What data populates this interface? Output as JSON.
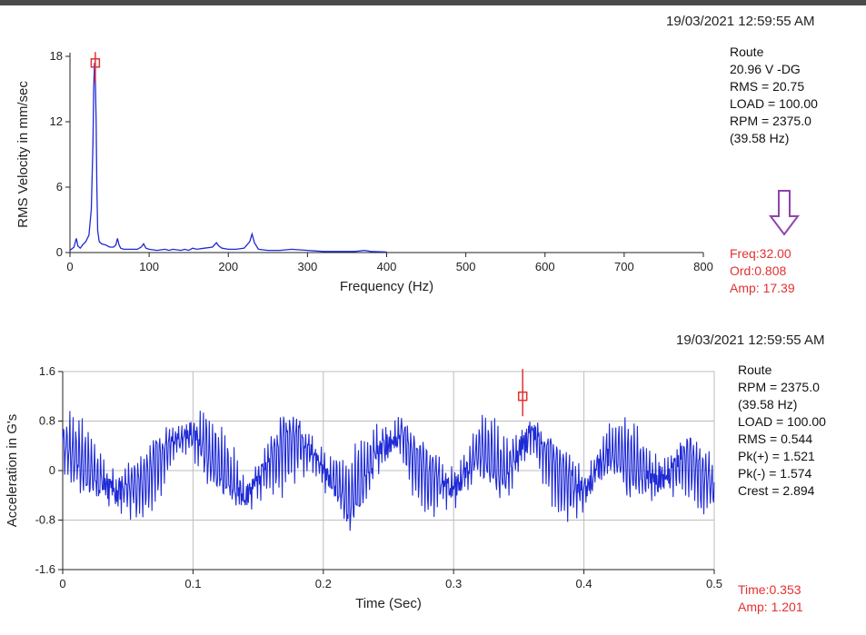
{
  "spectrum": {
    "timestamp": "19/03/2021 12:59:55 AM",
    "info": [
      "Route",
      "20.96 V -DG",
      "RMS = 20.75",
      "LOAD = 100.00",
      "RPM = 2375.0",
      "(39.58 Hz)"
    ],
    "cursor": [
      "Freq:32.00",
      "Ord:0.808",
      "Amp: 17.39"
    ],
    "arrow_icon": "down-arrow-icon",
    "arrow_color": "#8e44ad"
  },
  "waveform": {
    "timestamp": "19/03/2021 12:59:55 AM",
    "info": [
      "Route",
      "RPM = 2375.0",
      "(39.58 Hz)",
      "LOAD = 100.00",
      "RMS = 0.544",
      "Pk(+) = 1.521",
      "Pk(-) = 1.574",
      "Crest = 2.894"
    ],
    "cursor": [
      "Time:0.353",
      "Amp: 1.201"
    ]
  },
  "colors": {
    "trace": "#1f2ad6",
    "cursor": "#e33030",
    "grid": "#bdbdbd"
  },
  "chart_data": [
    {
      "type": "line",
      "xlabel": "Frequency (Hz)",
      "ylabel": "RMS Velocity in mm/sec",
      "xlim": [
        0,
        800
      ],
      "ylim": [
        0,
        18
      ],
      "xticks": [
        0,
        100,
        200,
        300,
        400,
        500,
        600,
        700,
        800
      ],
      "xtick_labels": [
        "0",
        "100",
        "200",
        "300",
        "400",
        "500",
        "600",
        "700",
        "800"
      ],
      "yticks": [
        0,
        6,
        12,
        18
      ],
      "ytick_labels": [
        "0",
        "6",
        "12",
        "18"
      ],
      "grid": false,
      "x": [
        0,
        5,
        8,
        10,
        13,
        16,
        20,
        24,
        27,
        29,
        30,
        31,
        32,
        33,
        34,
        35,
        37,
        40,
        45,
        50,
        55,
        58,
        60,
        62,
        64,
        68,
        75,
        85,
        90,
        93,
        96,
        100,
        110,
        120,
        125,
        130,
        140,
        145,
        150,
        155,
        160,
        170,
        180,
        185,
        188,
        192,
        200,
        210,
        220,
        227,
        230,
        233,
        238,
        250,
        265,
        280,
        300,
        320,
        340,
        360,
        372,
        380,
        400
      ],
      "y": [
        0.2,
        0.5,
        1.3,
        0.6,
        0.4,
        0.7,
        1.0,
        1.6,
        4.0,
        10.0,
        15.0,
        17.4,
        16.0,
        12.0,
        6.0,
        2.0,
        1.0,
        0.8,
        0.7,
        0.5,
        0.5,
        0.7,
        1.3,
        0.7,
        0.4,
        0.3,
        0.3,
        0.3,
        0.5,
        0.8,
        0.4,
        0.3,
        0.2,
        0.3,
        0.2,
        0.3,
        0.2,
        0.3,
        0.2,
        0.4,
        0.3,
        0.4,
        0.5,
        0.9,
        0.6,
        0.4,
        0.3,
        0.3,
        0.4,
        1.0,
        1.7,
        0.9,
        0.3,
        0.2,
        0.2,
        0.3,
        0.2,
        0.1,
        0.1,
        0.1,
        0.2,
        0.1,
        0.05
      ],
      "marker": {
        "x": 32,
        "y": 17.39
      }
    },
    {
      "type": "line",
      "xlabel": "Time (Sec)",
      "ylabel": "Acceleration in G's",
      "xlim": [
        0,
        0.5
      ],
      "ylim": [
        -1.6,
        1.6
      ],
      "xticks": [
        0,
        0.1,
        0.2,
        0.3,
        0.4,
        0.5
      ],
      "xtick_labels": [
        "0",
        "0.1",
        "0.2",
        "0.3",
        "0.4",
        "0.5"
      ],
      "yticks": [
        -1.6,
        -0.8,
        0,
        0.8,
        1.6
      ],
      "ytick_labels": [
        "-1.6",
        "-0.8",
        "0",
        "0.8",
        "1.6"
      ],
      "grid": true,
      "envelope_x": [
        0,
        0.02,
        0.04,
        0.06,
        0.08,
        0.1,
        0.12,
        0.14,
        0.16,
        0.18,
        0.2,
        0.22,
        0.24,
        0.26,
        0.28,
        0.3,
        0.32,
        0.34,
        0.36,
        0.38,
        0.4,
        0.42,
        0.44,
        0.46,
        0.48,
        0.5
      ],
      "envelope_y": [
        0.45,
        0.05,
        -0.35,
        -0.2,
        0.35,
        0.6,
        0.1,
        -0.45,
        0.2,
        0.55,
        0.05,
        -0.5,
        0.3,
        0.55,
        -0.1,
        -0.3,
        0.35,
        -0.05,
        0.65,
        -0.05,
        -0.35,
        0.35,
        0.05,
        -0.15,
        0.2,
        -0.3
      ],
      "vibration_amplitude": 0.5,
      "samples": 1000,
      "marker": {
        "x": 0.353,
        "y": 1.201
      }
    }
  ]
}
